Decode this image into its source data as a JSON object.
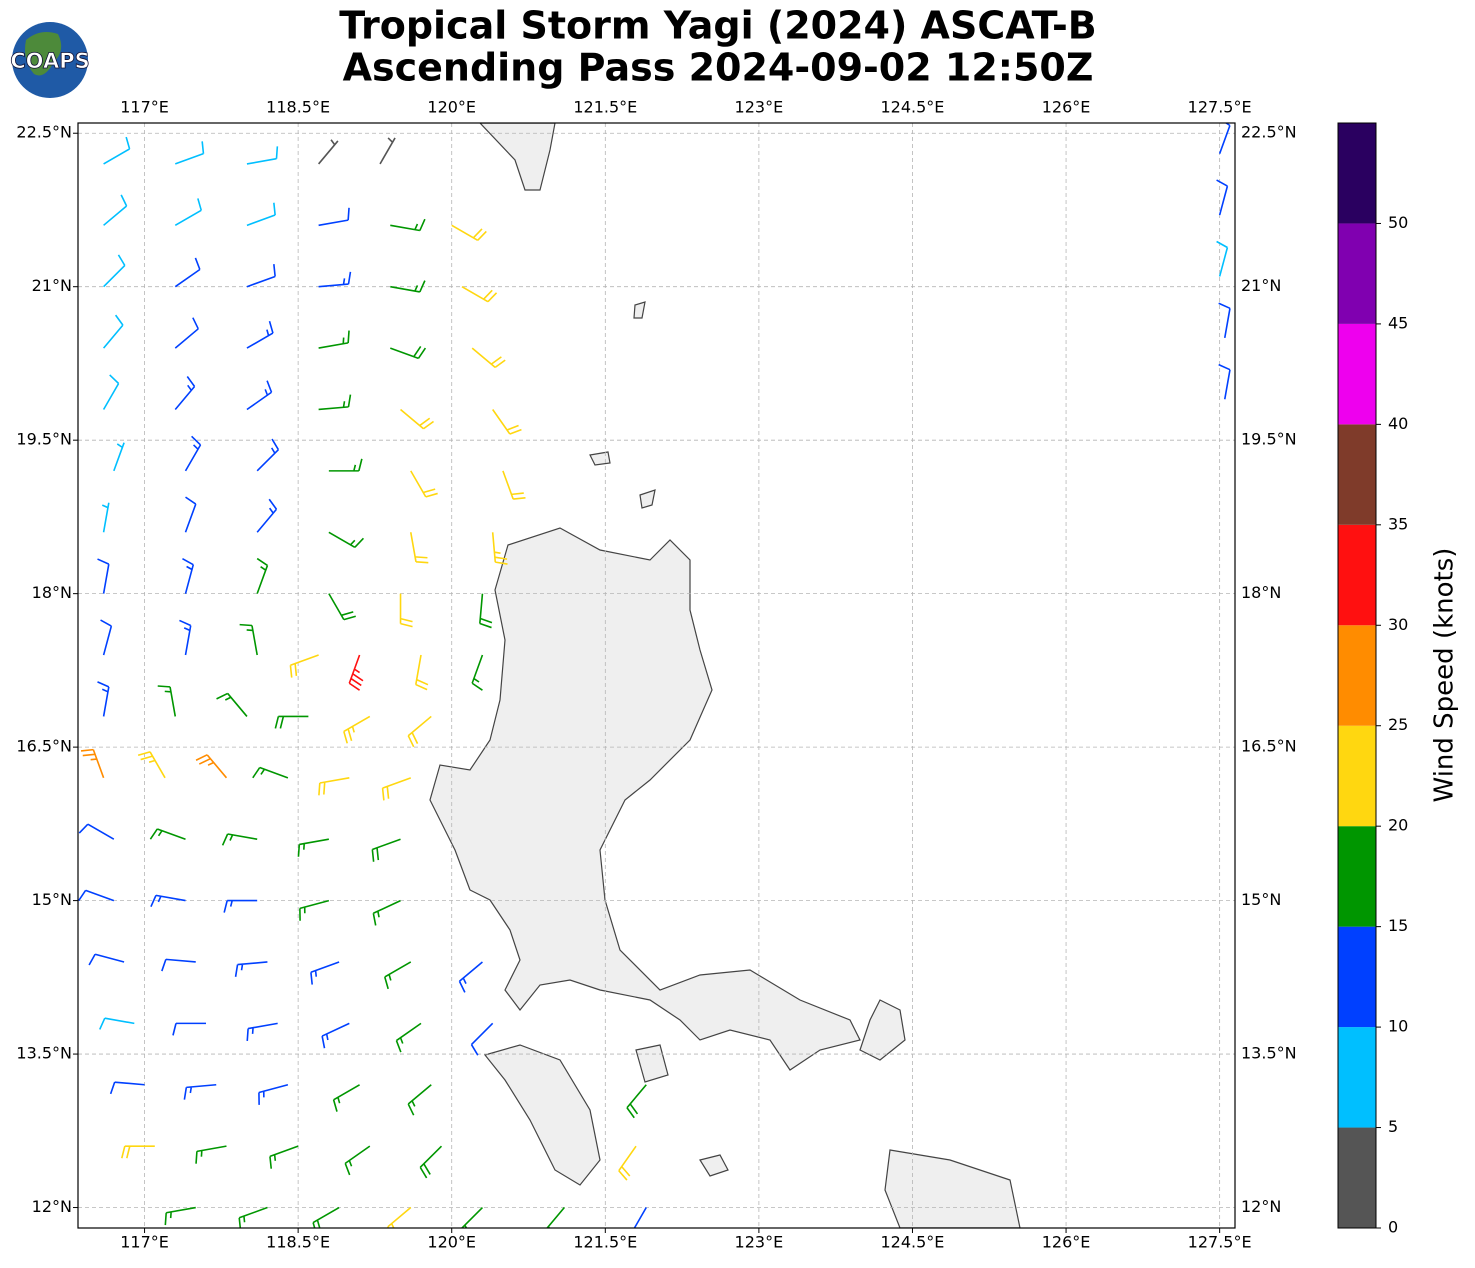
{
  "chart_data": {
    "type": "barbs",
    "logo_text": "COAPS",
    "title": [
      "Tropical Storm Yagi (2024) ASCAT-B",
      "Ascending Pass 2024-09-02 12:50Z"
    ],
    "xlim": [
      116.35,
      127.65
    ],
    "ylim": [
      11.8,
      22.6
    ],
    "xticks": [
      {
        "value": 117,
        "label": "117°E"
      },
      {
        "value": 118.5,
        "label": "118.5°E"
      },
      {
        "value": 120,
        "label": "120°E"
      },
      {
        "value": 121.5,
        "label": "121.5°E"
      },
      {
        "value": 123,
        "label": "123°E"
      },
      {
        "value": 124.5,
        "label": "124.5°E"
      },
      {
        "value": 126,
        "label": "126°E"
      },
      {
        "value": 127.5,
        "label": "127.5°E"
      }
    ],
    "yticks": [
      {
        "value": 12,
        "label": "12°N"
      },
      {
        "value": 13.5,
        "label": "13.5°N"
      },
      {
        "value": 15,
        "label": "15°N"
      },
      {
        "value": 16.5,
        "label": "16.5°N"
      },
      {
        "value": 18,
        "label": "18°N"
      },
      {
        "value": 19.5,
        "label": "19.5°N"
      },
      {
        "value": 21,
        "label": "21°N"
      },
      {
        "value": 22.5,
        "label": "22.5°N"
      }
    ],
    "grid": true,
    "colorbar": {
      "label": "Wind Speed (knots)",
      "clim": [
        0,
        55
      ],
      "ticks": [
        0,
        5,
        10,
        15,
        20,
        25,
        30,
        35,
        40,
        45,
        50
      ],
      "colors": [
        "#555555",
        "#00bfff",
        "#0040ff",
        "#009600",
        "#ffd710",
        "#ff8c00",
        "#ff1010",
        "#7f3b2a",
        "#ee00ee",
        "#8000b0",
        "#2a0060"
      ]
    },
    "barbs": [
      {
        "lon": 116.6,
        "lat": 22.2,
        "speed": 8,
        "direction": 60
      },
      {
        "lon": 117.3,
        "lat": 22.2,
        "speed": 8,
        "direction": 70
      },
      {
        "lon": 118.0,
        "lat": 22.2,
        "speed": 9,
        "direction": 80
      },
      {
        "lon": 118.7,
        "lat": 22.2,
        "speed": 3,
        "direction": 40
      },
      {
        "lon": 119.3,
        "lat": 22.2,
        "speed": 3,
        "direction": 30
      },
      {
        "lon": 116.6,
        "lat": 21.6,
        "speed": 8,
        "direction": 50
      },
      {
        "lon": 117.3,
        "lat": 21.6,
        "speed": 9,
        "direction": 60
      },
      {
        "lon": 118.0,
        "lat": 21.6,
        "speed": 8,
        "direction": 70
      },
      {
        "lon": 118.7,
        "lat": 21.6,
        "speed": 11,
        "direction": 80
      },
      {
        "lon": 119.4,
        "lat": 21.6,
        "speed": 17,
        "direction": 100
      },
      {
        "lon": 120.0,
        "lat": 21.6,
        "speed": 22,
        "direction": 120
      },
      {
        "lon": 116.6,
        "lat": 21.0,
        "speed": 9,
        "direction": 45
      },
      {
        "lon": 117.3,
        "lat": 21.0,
        "speed": 11,
        "direction": 55
      },
      {
        "lon": 118.0,
        "lat": 21.0,
        "speed": 12,
        "direction": 70
      },
      {
        "lon": 118.7,
        "lat": 21.0,
        "speed": 14,
        "direction": 85
      },
      {
        "lon": 119.4,
        "lat": 21.0,
        "speed": 17,
        "direction": 100
      },
      {
        "lon": 120.1,
        "lat": 21.0,
        "speed": 21,
        "direction": 120
      },
      {
        "lon": 116.6,
        "lat": 20.4,
        "speed": 9,
        "direction": 40
      },
      {
        "lon": 117.3,
        "lat": 20.4,
        "speed": 12,
        "direction": 50
      },
      {
        "lon": 118.0,
        "lat": 20.4,
        "speed": 13,
        "direction": 60
      },
      {
        "lon": 118.7,
        "lat": 20.4,
        "speed": 16,
        "direction": 80
      },
      {
        "lon": 119.4,
        "lat": 20.4,
        "speed": 18,
        "direction": 110
      },
      {
        "lon": 120.2,
        "lat": 20.4,
        "speed": 22,
        "direction": 130
      },
      {
        "lon": 116.6,
        "lat": 19.8,
        "speed": 8,
        "direction": 30
      },
      {
        "lon": 117.3,
        "lat": 19.8,
        "speed": 13,
        "direction": 40
      },
      {
        "lon": 118.0,
        "lat": 19.8,
        "speed": 14,
        "direction": 55
      },
      {
        "lon": 118.7,
        "lat": 19.8,
        "speed": 17,
        "direction": 85
      },
      {
        "lon": 119.5,
        "lat": 19.8,
        "speed": 20,
        "direction": 130
      },
      {
        "lon": 120.4,
        "lat": 19.8,
        "speed": 22,
        "direction": 145
      },
      {
        "lon": 116.7,
        "lat": 19.2,
        "speed": 7,
        "direction": 20
      },
      {
        "lon": 117.4,
        "lat": 19.2,
        "speed": 13,
        "direction": 30
      },
      {
        "lon": 118.1,
        "lat": 19.2,
        "speed": 13,
        "direction": 45
      },
      {
        "lon": 118.8,
        "lat": 19.2,
        "speed": 16,
        "direction": 90
      },
      {
        "lon": 119.6,
        "lat": 19.2,
        "speed": 21,
        "direction": 150
      },
      {
        "lon": 120.5,
        "lat": 19.2,
        "speed": 22,
        "direction": 160
      },
      {
        "lon": 116.6,
        "lat": 18.6,
        "speed": 7,
        "direction": 10
      },
      {
        "lon": 117.4,
        "lat": 18.6,
        "speed": 12,
        "direction": 20
      },
      {
        "lon": 118.1,
        "lat": 18.6,
        "speed": 13,
        "direction": 40
      },
      {
        "lon": 118.8,
        "lat": 18.6,
        "speed": 17,
        "direction": 120
      },
      {
        "lon": 119.6,
        "lat": 18.6,
        "speed": 22,
        "direction": 170
      },
      {
        "lon": 120.4,
        "lat": 18.6,
        "speed": 23,
        "direction": 175
      },
      {
        "lon": 116.6,
        "lat": 18.0,
        "speed": 11,
        "direction": 10
      },
      {
        "lon": 117.4,
        "lat": 18.0,
        "speed": 13,
        "direction": 15
      },
      {
        "lon": 118.1,
        "lat": 18.0,
        "speed": 16,
        "direction": 20
      },
      {
        "lon": 118.8,
        "lat": 18.0,
        "speed": 19,
        "direction": 150
      },
      {
        "lon": 119.5,
        "lat": 18.0,
        "speed": 22,
        "direction": 180
      },
      {
        "lon": 120.3,
        "lat": 18.0,
        "speed": 18,
        "direction": 185
      },
      {
        "lon": 116.6,
        "lat": 17.4,
        "speed": 12,
        "direction": 15
      },
      {
        "lon": 117.4,
        "lat": 17.4,
        "speed": 14,
        "direction": 10
      },
      {
        "lon": 118.1,
        "lat": 17.4,
        "speed": 17,
        "direction": 350
      },
      {
        "lon": 118.7,
        "lat": 17.4,
        "speed": 22,
        "direction": 250
      },
      {
        "lon": 119.1,
        "lat": 17.4,
        "speed": 33,
        "direction": 200
      },
      {
        "lon": 119.7,
        "lat": 17.4,
        "speed": 22,
        "direction": 190
      },
      {
        "lon": 120.3,
        "lat": 17.4,
        "speed": 16,
        "direction": 200
      },
      {
        "lon": 116.6,
        "lat": 16.8,
        "speed": 14,
        "direction": 10
      },
      {
        "lon": 117.3,
        "lat": 16.8,
        "speed": 16,
        "direction": 350
      },
      {
        "lon": 118.0,
        "lat": 16.8,
        "speed": 17,
        "direction": 320
      },
      {
        "lon": 118.6,
        "lat": 16.8,
        "speed": 19,
        "direction": 270
      },
      {
        "lon": 119.2,
        "lat": 16.8,
        "speed": 23,
        "direction": 240
      },
      {
        "lon": 119.8,
        "lat": 16.8,
        "speed": 22,
        "direction": 230
      },
      {
        "lon": 116.6,
        "lat": 16.2,
        "speed": 26,
        "direction": 340
      },
      {
        "lon": 117.2,
        "lat": 16.2,
        "speed": 24,
        "direction": 330
      },
      {
        "lon": 117.8,
        "lat": 16.2,
        "speed": 26,
        "direction": 320
      },
      {
        "lon": 118.4,
        "lat": 16.2,
        "speed": 17,
        "direction": 290
      },
      {
        "lon": 119.0,
        "lat": 16.2,
        "speed": 20,
        "direction": 260
      },
      {
        "lon": 119.6,
        "lat": 16.2,
        "speed": 22,
        "direction": 250
      },
      {
        "lon": 116.7,
        "lat": 15.6,
        "speed": 12,
        "direction": 300
      },
      {
        "lon": 117.4,
        "lat": 15.6,
        "speed": 16,
        "direction": 290
      },
      {
        "lon": 118.1,
        "lat": 15.6,
        "speed": 17,
        "direction": 280
      },
      {
        "lon": 118.8,
        "lat": 15.6,
        "speed": 17,
        "direction": 260
      },
      {
        "lon": 119.5,
        "lat": 15.6,
        "speed": 18,
        "direction": 250
      },
      {
        "lon": 116.7,
        "lat": 15.0,
        "speed": 12,
        "direction": 290
      },
      {
        "lon": 117.4,
        "lat": 15.0,
        "speed": 13,
        "direction": 280
      },
      {
        "lon": 118.1,
        "lat": 15.0,
        "speed": 14,
        "direction": 270
      },
      {
        "lon": 118.8,
        "lat": 15.0,
        "speed": 16,
        "direction": 255
      },
      {
        "lon": 119.5,
        "lat": 15.0,
        "speed": 17,
        "direction": 245
      },
      {
        "lon": 116.8,
        "lat": 14.4,
        "speed": 11,
        "direction": 285
      },
      {
        "lon": 117.5,
        "lat": 14.4,
        "speed": 12,
        "direction": 275
      },
      {
        "lon": 118.2,
        "lat": 14.4,
        "speed": 13,
        "direction": 265
      },
      {
        "lon": 118.9,
        "lat": 14.4,
        "speed": 14,
        "direction": 250
      },
      {
        "lon": 119.6,
        "lat": 14.4,
        "speed": 15,
        "direction": 240
      },
      {
        "lon": 120.3,
        "lat": 14.4,
        "speed": 13,
        "direction": 230
      },
      {
        "lon": 116.9,
        "lat": 13.8,
        "speed": 9,
        "direction": 280
      },
      {
        "lon": 117.6,
        "lat": 13.8,
        "speed": 12,
        "direction": 270
      },
      {
        "lon": 118.3,
        "lat": 13.8,
        "speed": 13,
        "direction": 260
      },
      {
        "lon": 119.0,
        "lat": 13.8,
        "speed": 14,
        "direction": 245
      },
      {
        "lon": 119.7,
        "lat": 13.8,
        "speed": 16,
        "direction": 235
      },
      {
        "lon": 120.4,
        "lat": 13.8,
        "speed": 12,
        "direction": 225
      },
      {
        "lon": 117.0,
        "lat": 13.2,
        "speed": 11,
        "direction": 275
      },
      {
        "lon": 117.7,
        "lat": 13.2,
        "speed": 13,
        "direction": 265
      },
      {
        "lon": 118.4,
        "lat": 13.2,
        "speed": 14,
        "direction": 255
      },
      {
        "lon": 119.1,
        "lat": 13.2,
        "speed": 15,
        "direction": 240
      },
      {
        "lon": 119.8,
        "lat": 13.2,
        "speed": 16,
        "direction": 230
      },
      {
        "lon": 121.9,
        "lat": 13.2,
        "speed": 19,
        "direction": 220
      },
      {
        "lon": 117.1,
        "lat": 12.6,
        "speed": 21,
        "direction": 270
      },
      {
        "lon": 117.8,
        "lat": 12.6,
        "speed": 17,
        "direction": 260
      },
      {
        "lon": 118.5,
        "lat": 12.6,
        "speed": 17,
        "direction": 250
      },
      {
        "lon": 119.2,
        "lat": 12.6,
        "speed": 17,
        "direction": 235
      },
      {
        "lon": 119.9,
        "lat": 12.6,
        "speed": 18,
        "direction": 225
      },
      {
        "lon": 121.8,
        "lat": 12.6,
        "speed": 22,
        "direction": 215
      },
      {
        "lon": 117.5,
        "lat": 12.0,
        "speed": 17,
        "direction": 260
      },
      {
        "lon": 118.2,
        "lat": 12.0,
        "speed": 17,
        "direction": 250
      },
      {
        "lon": 118.9,
        "lat": 12.0,
        "speed": 19,
        "direction": 240
      },
      {
        "lon": 119.6,
        "lat": 12.0,
        "speed": 22,
        "direction": 230
      },
      {
        "lon": 120.3,
        "lat": 12.0,
        "speed": 18,
        "direction": 225
      },
      {
        "lon": 121.1,
        "lat": 12.0,
        "speed": 17,
        "direction": 220
      },
      {
        "lon": 121.9,
        "lat": 12.0,
        "speed": 12,
        "direction": 210
      },
      {
        "lon": 127.5,
        "lat": 22.3,
        "speed": 11,
        "direction": 20
      },
      {
        "lon": 127.5,
        "lat": 21.7,
        "speed": 12,
        "direction": 15
      },
      {
        "lon": 127.5,
        "lat": 21.1,
        "speed": 9,
        "direction": 15
      },
      {
        "lon": 127.55,
        "lat": 20.5,
        "speed": 12,
        "direction": 10
      },
      {
        "lon": 127.55,
        "lat": 19.9,
        "speed": 12,
        "direction": 10
      }
    ]
  }
}
